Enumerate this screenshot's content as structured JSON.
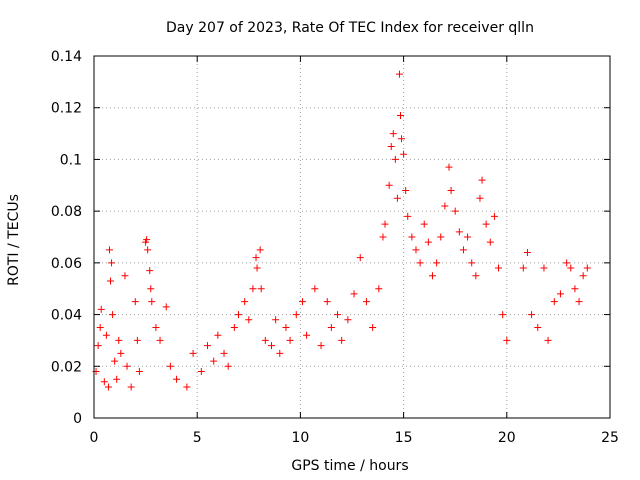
{
  "chart_data": {
    "type": "scatter",
    "title": "Day 207 of 2023, Rate Of TEC Index for receiver qlln",
    "xlabel": "GPS time / hours",
    "ylabel": "ROTI / TECUs",
    "xlim": [
      0,
      25
    ],
    "ylim": [
      0,
      0.14
    ],
    "x_ticks": [
      "0",
      "5",
      "10",
      "15",
      "20",
      "25"
    ],
    "y_ticks": [
      "0",
      "0.02",
      "0.04",
      "0.06",
      "0.08",
      "0.1",
      "0.12",
      "0.14"
    ],
    "grid": true,
    "legend": "none",
    "marker": "+",
    "colors": {
      "points": "#ff0000",
      "grid": "#a0a0a0",
      "axes": "#000000"
    },
    "series": [
      {
        "values_note_skipped": false,
        "points": [
          [
            0.1,
            0.018
          ],
          [
            0.2,
            0.028
          ],
          [
            0.3,
            0.035
          ],
          [
            0.35,
            0.042
          ],
          [
            0.5,
            0.014
          ],
          [
            0.6,
            0.032
          ],
          [
            0.7,
            0.012
          ],
          [
            0.75,
            0.065
          ],
          [
            0.8,
            0.053
          ],
          [
            0.85,
            0.06
          ],
          [
            0.9,
            0.04
          ],
          [
            1.0,
            0.022
          ],
          [
            1.1,
            0.015
          ],
          [
            1.2,
            0.03
          ],
          [
            1.3,
            0.025
          ],
          [
            1.5,
            0.055
          ],
          [
            1.6,
            0.02
          ],
          [
            1.8,
            0.012
          ],
          [
            2.0,
            0.045
          ],
          [
            2.1,
            0.03
          ],
          [
            2.2,
            0.018
          ],
          [
            2.5,
            0.068
          ],
          [
            2.55,
            0.069
          ],
          [
            2.6,
            0.065
          ],
          [
            2.7,
            0.057
          ],
          [
            2.75,
            0.05
          ],
          [
            2.8,
            0.045
          ],
          [
            3.0,
            0.035
          ],
          [
            3.2,
            0.03
          ],
          [
            3.5,
            0.043
          ],
          [
            3.7,
            0.02
          ],
          [
            4.0,
            0.015
          ],
          [
            4.5,
            0.012
          ],
          [
            4.8,
            0.025
          ],
          [
            5.2,
            0.018
          ],
          [
            5.5,
            0.028
          ],
          [
            5.8,
            0.022
          ],
          [
            6.0,
            0.032
          ],
          [
            6.3,
            0.025
          ],
          [
            6.5,
            0.02
          ],
          [
            6.8,
            0.035
          ],
          [
            7.0,
            0.04
          ],
          [
            7.3,
            0.045
          ],
          [
            7.5,
            0.038
          ],
          [
            7.7,
            0.05
          ],
          [
            7.85,
            0.062
          ],
          [
            7.9,
            0.058
          ],
          [
            8.05,
            0.065
          ],
          [
            8.1,
            0.05
          ],
          [
            8.3,
            0.03
          ],
          [
            8.6,
            0.028
          ],
          [
            8.8,
            0.038
          ],
          [
            9.0,
            0.025
          ],
          [
            9.3,
            0.035
          ],
          [
            9.5,
            0.03
          ],
          [
            9.8,
            0.04
          ],
          [
            10.1,
            0.045
          ],
          [
            10.3,
            0.032
          ],
          [
            10.7,
            0.05
          ],
          [
            11.0,
            0.028
          ],
          [
            11.3,
            0.045
          ],
          [
            11.5,
            0.035
          ],
          [
            11.8,
            0.04
          ],
          [
            12.0,
            0.03
          ],
          [
            12.3,
            0.038
          ],
          [
            12.6,
            0.048
          ],
          [
            12.9,
            0.062
          ],
          [
            13.2,
            0.045
          ],
          [
            13.5,
            0.035
          ],
          [
            13.8,
            0.05
          ],
          [
            14.0,
            0.07
          ],
          [
            14.1,
            0.075
          ],
          [
            14.3,
            0.09
          ],
          [
            14.4,
            0.105
          ],
          [
            14.5,
            0.11
          ],
          [
            14.6,
            0.1
          ],
          [
            14.7,
            0.085
          ],
          [
            14.8,
            0.133
          ],
          [
            14.85,
            0.117
          ],
          [
            14.9,
            0.108
          ],
          [
            15.0,
            0.102
          ],
          [
            15.1,
            0.088
          ],
          [
            15.2,
            0.078
          ],
          [
            15.4,
            0.07
          ],
          [
            15.6,
            0.065
          ],
          [
            15.8,
            0.06
          ],
          [
            16.0,
            0.075
          ],
          [
            16.2,
            0.068
          ],
          [
            16.4,
            0.055
          ],
          [
            16.6,
            0.06
          ],
          [
            16.8,
            0.07
          ],
          [
            17.0,
            0.082
          ],
          [
            17.2,
            0.097
          ],
          [
            17.3,
            0.088
          ],
          [
            17.5,
            0.08
          ],
          [
            17.7,
            0.072
          ],
          [
            17.9,
            0.065
          ],
          [
            18.1,
            0.07
          ],
          [
            18.3,
            0.06
          ],
          [
            18.5,
            0.055
          ],
          [
            18.7,
            0.085
          ],
          [
            18.8,
            0.092
          ],
          [
            19.0,
            0.075
          ],
          [
            19.2,
            0.068
          ],
          [
            19.4,
            0.078
          ],
          [
            19.6,
            0.058
          ],
          [
            19.8,
            0.04
          ],
          [
            20.0,
            0.03
          ],
          [
            20.8,
            0.058
          ],
          [
            21.0,
            0.064
          ],
          [
            21.2,
            0.04
          ],
          [
            21.5,
            0.035
          ],
          [
            21.8,
            0.058
          ],
          [
            22.0,
            0.03
          ],
          [
            22.3,
            0.045
          ],
          [
            22.6,
            0.048
          ],
          [
            22.9,
            0.06
          ],
          [
            23.1,
            0.058
          ],
          [
            23.3,
            0.05
          ],
          [
            23.5,
            0.045
          ],
          [
            23.7,
            0.055
          ],
          [
            23.9,
            0.058
          ]
        ]
      }
    ]
  }
}
